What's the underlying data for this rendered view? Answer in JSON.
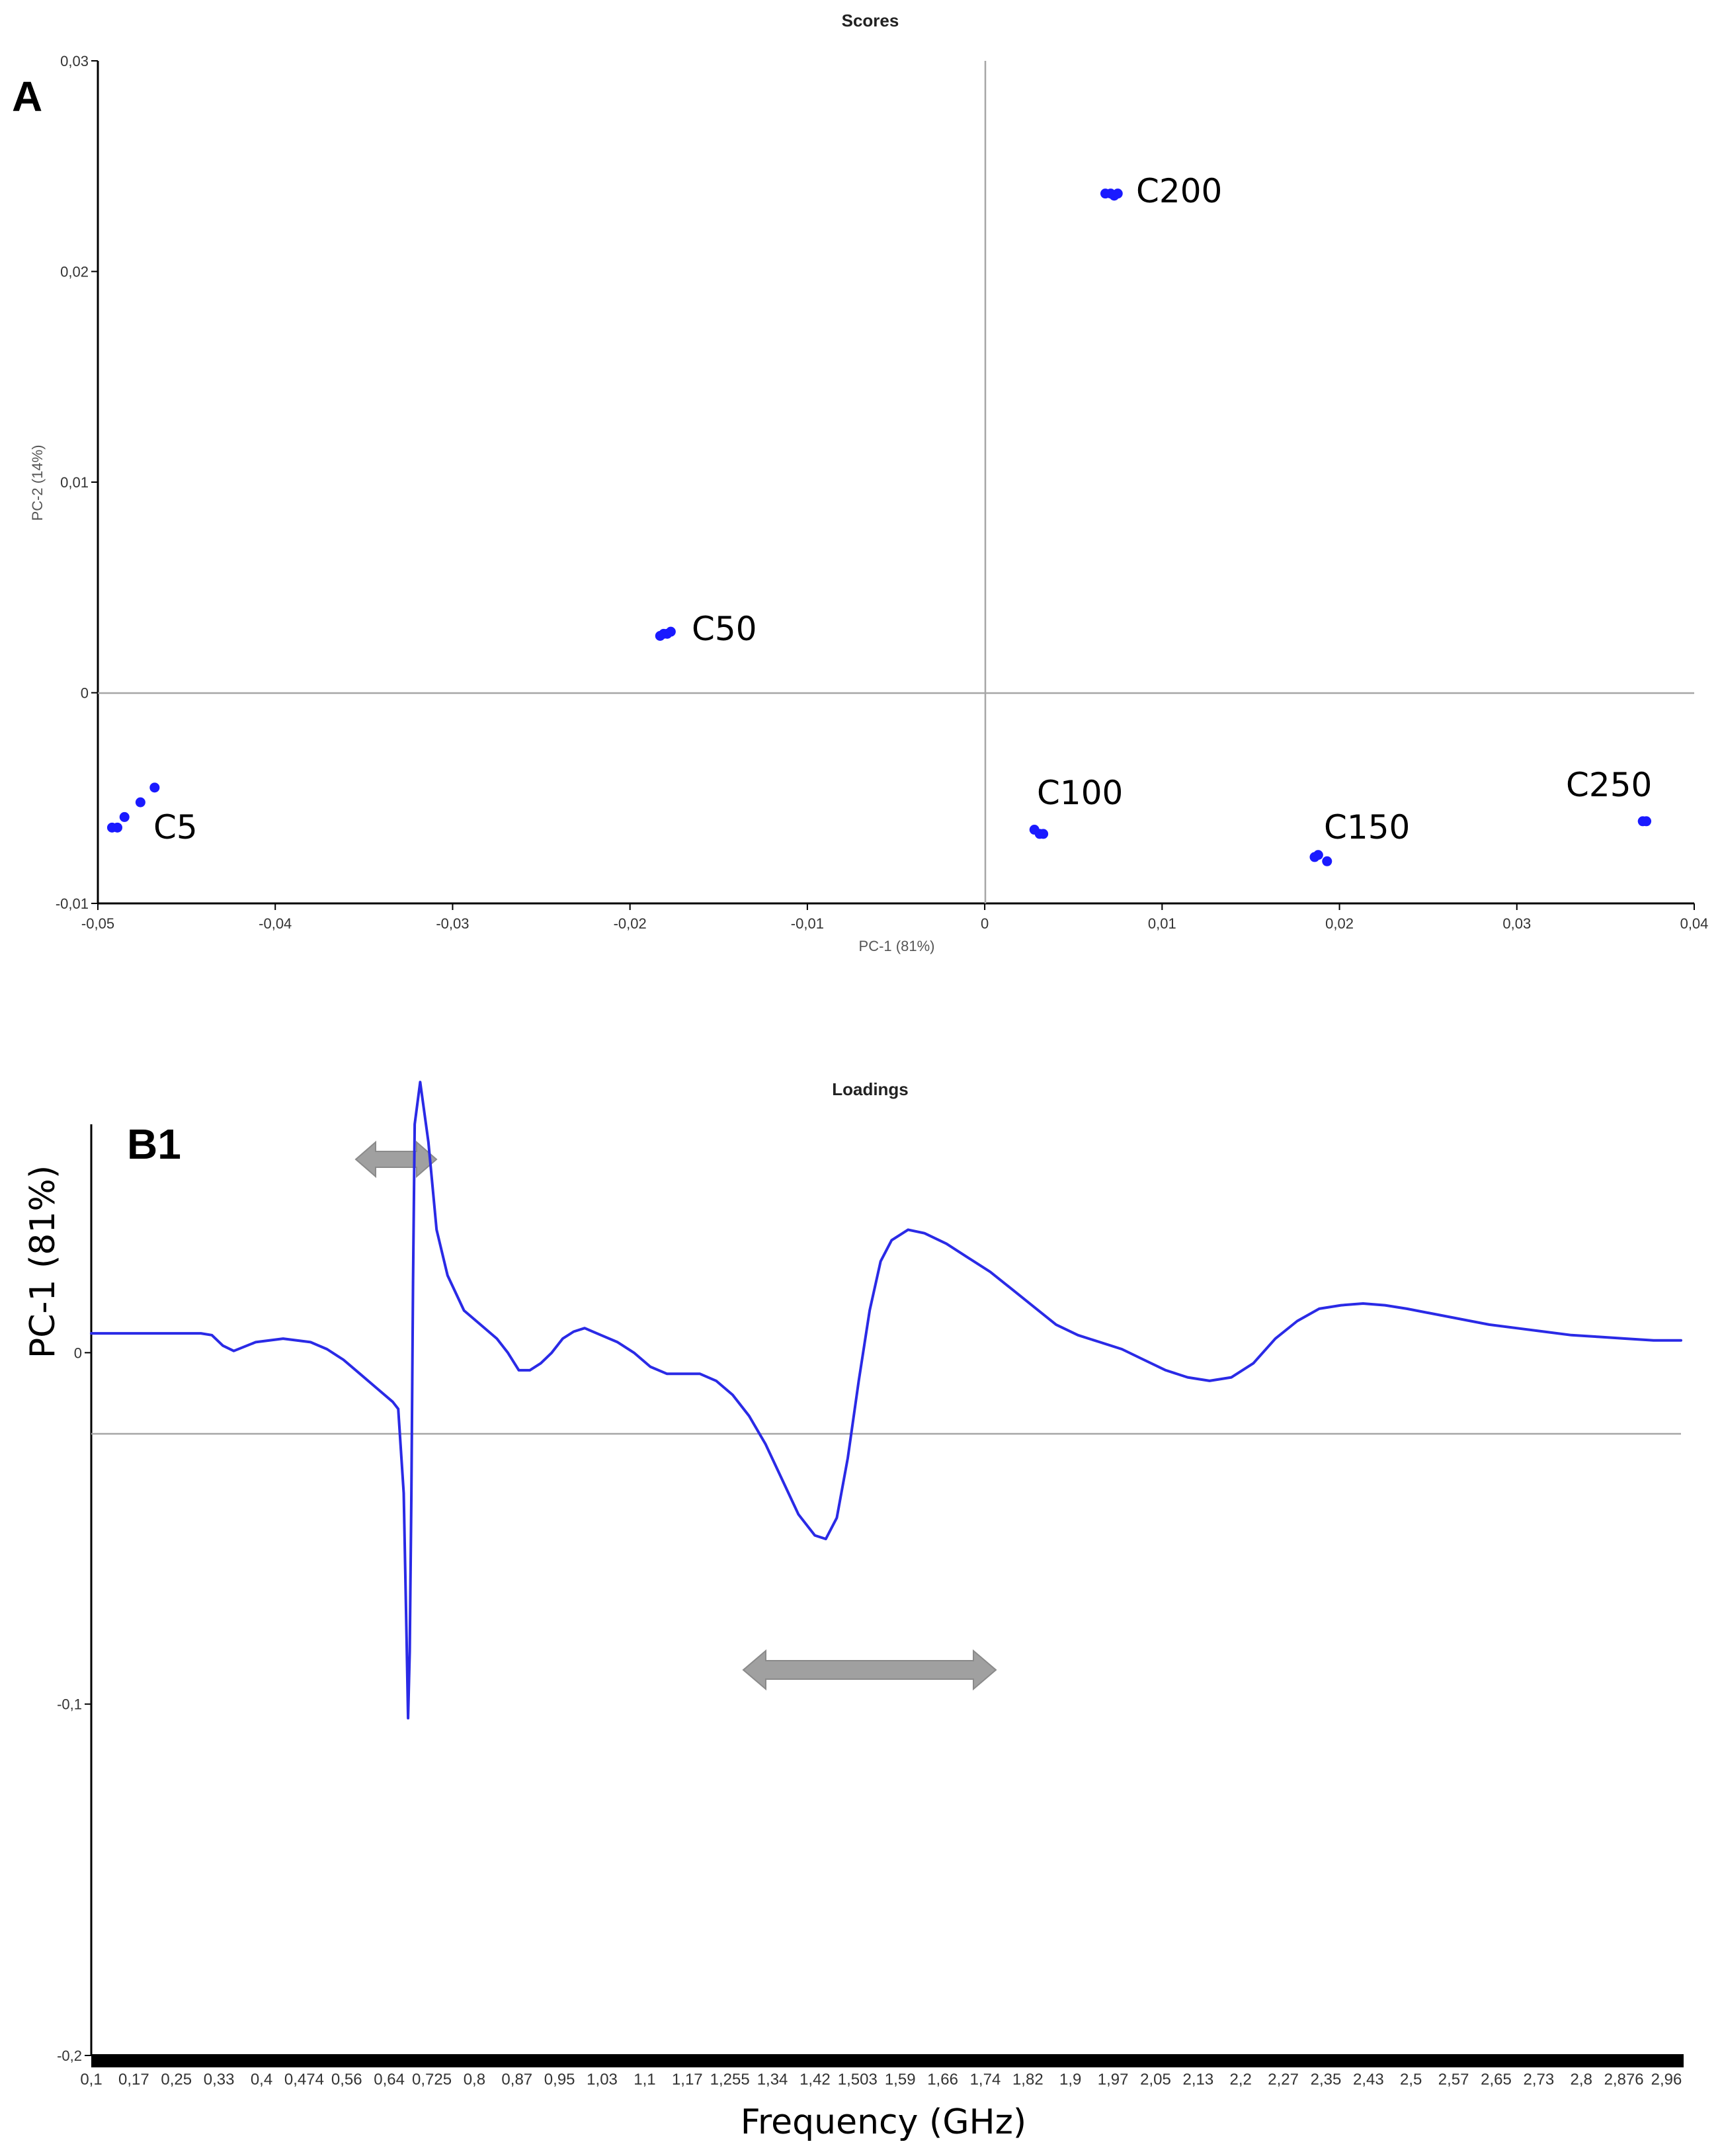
{
  "colors": {
    "points": "#1a1aff",
    "line": "#2a2ae6",
    "axis": "#000000",
    "zero_line": "#a6a6a6",
    "arrow": "#a0a0a0",
    "arrow_edge": "#8a8a8a"
  },
  "chart_data": [
    {
      "type": "scatter",
      "panel_label": "A",
      "title": "Scores",
      "xlabel": "PC-1 (81%)",
      "ylabel": "PC-2 (14%)",
      "xlim": [
        -0.05,
        0.04
      ],
      "ylim": [
        -0.01,
        0.03
      ],
      "x_ticks": [
        "-0,05",
        "-0,04",
        "-0,03",
        "-0,02",
        "-0,01",
        "0",
        "0,01",
        "0,02",
        "0,03",
        "0,04"
      ],
      "y_ticks": [
        "0,03",
        "0,02",
        "0,01",
        "0",
        "-0,01"
      ],
      "grid": false,
      "zero_lines": true,
      "clusters": [
        {
          "label": "C5",
          "points": [
            [
              -0.0492,
              -0.0064
            ],
            [
              -0.0489,
              -0.0064
            ],
            [
              -0.0485,
              -0.0059
            ],
            [
              -0.0476,
              -0.0052
            ],
            [
              -0.0468,
              -0.0045
            ]
          ]
        },
        {
          "label": "C50",
          "points": [
            [
              -0.0183,
              0.0027
            ],
            [
              -0.0181,
              0.0028
            ],
            [
              -0.0179,
              0.0028
            ],
            [
              -0.0177,
              0.0029
            ]
          ]
        },
        {
          "label": "C100",
          "points": [
            [
              0.0028,
              -0.0065
            ],
            [
              0.0031,
              -0.0067
            ],
            [
              0.0033,
              -0.0067
            ]
          ]
        },
        {
          "label": "C150",
          "points": [
            [
              0.0186,
              -0.0078
            ],
            [
              0.0188,
              -0.0077
            ],
            [
              0.0193,
              -0.008
            ]
          ]
        },
        {
          "label": "C200",
          "points": [
            [
              0.0068,
              0.0237
            ],
            [
              0.0071,
              0.0237
            ],
            [
              0.0073,
              0.0236
            ],
            [
              0.0075,
              0.0237
            ]
          ]
        },
        {
          "label": "C250",
          "points": [
            [
              0.0371,
              -0.0061
            ],
            [
              0.0373,
              -0.0061
            ]
          ]
        }
      ]
    },
    {
      "type": "line",
      "panel_label": "B1",
      "title": "Loadings",
      "xlabel": "Frequency (GHz)",
      "ylabel": "PC-1 (81%)",
      "xlim": [
        0.1,
        3.0
      ],
      "ylim": [
        -0.2,
        0.065
      ],
      "x_ticks": [
        "0,1",
        "0,17",
        "0,25",
        "0,33",
        "0,4",
        "0,474",
        "0,56",
        "0,64",
        "0,725",
        "0,8",
        "0,87",
        "0,95",
        "1,03",
        "1,1",
        "1,17",
        "1,255",
        "1,34",
        "1,42",
        "1,503",
        "1,59",
        "1,66",
        "1,74",
        "1,82",
        "1,9",
        "1,97",
        "2,05",
        "2,13",
        "2,2",
        "2,27",
        "2,35",
        "2,43",
        "2,5",
        "2,57",
        "2,65",
        "2,73",
        "2,8",
        "2,876",
        "2,96"
      ],
      "y_ticks": [
        "0",
        "-0,1",
        "-0,2"
      ],
      "grid": false,
      "zero_line": true,
      "annotations": [
        "double-arrow over 0.61–0.72 GHz",
        "double-arrow over 1.30–1.76 GHz"
      ],
      "series": [
        {
          "x": [
            0.1,
            0.2,
            0.3,
            0.32,
            0.34,
            0.36,
            0.4,
            0.45,
            0.5,
            0.53,
            0.56,
            0.59,
            0.62,
            0.65,
            0.66,
            0.67,
            0.675,
            0.678,
            0.681,
            0.684,
            0.687,
            0.69,
            0.7,
            0.715,
            0.73,
            0.75,
            0.78,
            0.81,
            0.84,
            0.86,
            0.88,
            0.9,
            0.92,
            0.94,
            0.96,
            0.98,
            1.0,
            1.03,
            1.06,
            1.09,
            1.12,
            1.15,
            1.18,
            1.21,
            1.24,
            1.27,
            1.3,
            1.33,
            1.36,
            1.39,
            1.42,
            1.44,
            1.46,
            1.48,
            1.5,
            1.52,
            1.54,
            1.56,
            1.59,
            1.62,
            1.66,
            1.7,
            1.74,
            1.78,
            1.82,
            1.86,
            1.9,
            1.94,
            1.98,
            2.02,
            2.06,
            2.1,
            2.14,
            2.18,
            2.22,
            2.26,
            2.3,
            2.34,
            2.38,
            2.42,
            2.46,
            2.5,
            2.55,
            2.6,
            2.65,
            2.7,
            2.75,
            2.8,
            2.85,
            2.9,
            2.95,
            3.0
          ],
          "y": [
            0.0055,
            0.0055,
            0.0055,
            0.005,
            0.002,
            0.0005,
            0.003,
            0.004,
            0.003,
            0.001,
            -0.002,
            -0.006,
            -0.01,
            -0.014,
            -0.016,
            -0.04,
            -0.08,
            -0.104,
            -0.085,
            -0.04,
            0.02,
            0.065,
            0.077,
            0.06,
            0.035,
            0.022,
            0.012,
            0.008,
            0.004,
            0.0,
            -0.005,
            -0.005,
            -0.003,
            0.0,
            0.004,
            0.006,
            0.007,
            0.005,
            0.003,
            0.0,
            -0.004,
            -0.006,
            -0.006,
            -0.006,
            -0.008,
            -0.012,
            -0.018,
            -0.026,
            -0.036,
            -0.046,
            -0.052,
            -0.053,
            -0.047,
            -0.03,
            -0.008,
            0.012,
            0.026,
            0.032,
            0.035,
            0.034,
            0.031,
            0.027,
            0.023,
            0.018,
            0.013,
            0.008,
            0.005,
            0.003,
            0.001,
            -0.002,
            -0.005,
            -0.007,
            -0.008,
            -0.007,
            -0.003,
            0.004,
            0.009,
            0.0125,
            0.0135,
            0.014,
            0.0135,
            0.0125,
            0.011,
            0.0095,
            0.008,
            0.007,
            0.006,
            0.005,
            0.0045,
            0.004,
            0.0035,
            0.0035
          ]
        }
      ]
    }
  ]
}
